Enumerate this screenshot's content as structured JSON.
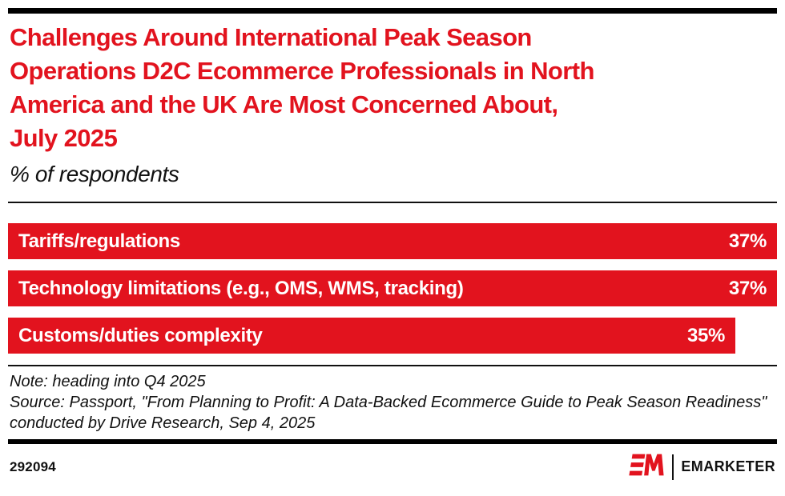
{
  "page": {
    "background": "#ffffff",
    "accent_red": "#E2131E",
    "rule_color": "#000000"
  },
  "header": {
    "title_lines": [
      "Challenges Around International Peak Season",
      "Operations D2C Ecommerce Professionals in North",
      "America and the UK Are Most Concerned About,",
      "July 2025"
    ],
    "subtitle": "% of respondents"
  },
  "chart_data": {
    "type": "bar",
    "orientation": "horizontal",
    "title": "Challenges Around International Peak Season Operations D2C Ecommerce Professionals in North America and the UK Are Most Concerned About, July 2025",
    "subtitle": "% of respondents",
    "xlabel": "",
    "ylabel": "",
    "grid": false,
    "legend": false,
    "categories": [
      "Tariffs/regulations",
      "Technology limitations (e.g., OMS, WMS, tracking)",
      "Customs/duties complexity"
    ],
    "values": [
      37,
      37,
      35
    ],
    "value_labels": [
      "37%",
      "37%",
      "35%"
    ],
    "unit": "%",
    "scale_max": 37,
    "bar_color": "#E2131E",
    "bar_text_color": "#ffffff"
  },
  "notes": {
    "note": "Note: heading into Q4 2025",
    "source": "Source: Passport, \"From Planning to Profit: A Data-Backed Ecommerce Guide to Peak Season Readiness\" conducted by Drive Research, Sep 4, 2025"
  },
  "footer": {
    "chart_id": "292094",
    "brand_name": "EMARKETER"
  }
}
